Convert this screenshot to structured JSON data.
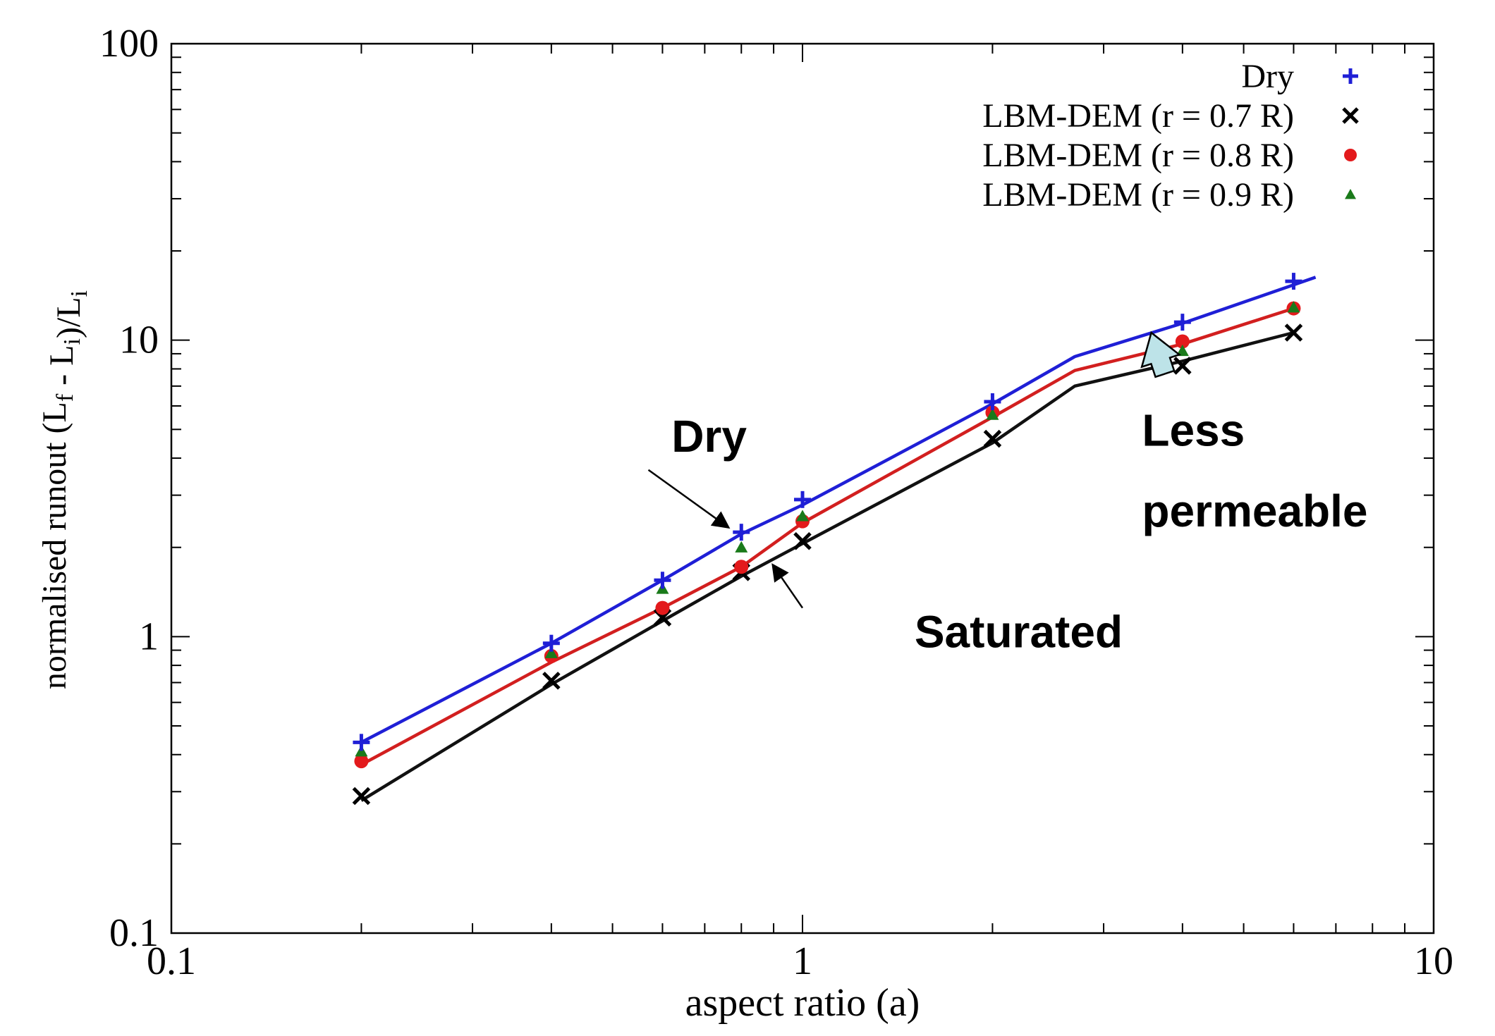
{
  "chart_data": {
    "type": "scatter",
    "title": "",
    "xlabel": "aspect ratio (a)",
    "ylabel": "normalised runout (L_f - L_i)/L_i",
    "xscale": "log",
    "yscale": "log",
    "xlim": [
      0.1,
      10
    ],
    "ylim": [
      0.1,
      100
    ],
    "x_ticks": [
      "0.1",
      "1",
      "10"
    ],
    "y_ticks": [
      "0.1",
      "1",
      "10",
      "100"
    ],
    "legend_position": "top-right",
    "series": [
      {
        "name": "Dry",
        "marker": "plus",
        "color": "#1f1fd6",
        "points": [
          [
            0.2,
            0.44
          ],
          [
            0.4,
            0.95
          ],
          [
            0.6,
            1.55
          ],
          [
            0.8,
            2.25
          ],
          [
            1.0,
            2.9
          ],
          [
            2.0,
            6.2
          ],
          [
            4.0,
            11.5
          ],
          [
            6.0,
            15.8
          ]
        ]
      },
      {
        "name": "LBM-DEM (r = 0.7 R)",
        "marker": "x",
        "color": "#000000",
        "points": [
          [
            0.2,
            0.29
          ],
          [
            0.4,
            0.71
          ],
          [
            0.6,
            1.16
          ],
          [
            0.8,
            1.65
          ],
          [
            1.0,
            2.1
          ],
          [
            2.0,
            4.65
          ],
          [
            4.0,
            8.2
          ],
          [
            6.0,
            10.6
          ]
        ]
      },
      {
        "name": "LBM-DEM (r = 0.8 R)",
        "marker": "circle",
        "color": "#e31a1c",
        "points": [
          [
            0.2,
            0.38
          ],
          [
            0.4,
            0.86
          ],
          [
            0.6,
            1.25
          ],
          [
            0.8,
            1.72
          ],
          [
            1.0,
            2.45
          ],
          [
            2.0,
            5.7
          ],
          [
            4.0,
            9.9
          ],
          [
            6.0,
            12.8
          ]
        ]
      },
      {
        "name": "LBM-DEM (r = 0.9 R)",
        "marker": "triangle",
        "color": "#1a7a1a",
        "points": [
          [
            0.2,
            0.41
          ],
          [
            0.4,
            0.88
          ],
          [
            0.6,
            1.45
          ],
          [
            0.8,
            2.0
          ],
          [
            1.0,
            2.55
          ],
          [
            2.0,
            5.6
          ],
          [
            4.0,
            9.2
          ],
          [
            6.0,
            12.9
          ]
        ]
      }
    ],
    "trend_lines": [
      {
        "series": "Dry",
        "color": "#1f1fd6",
        "points": [
          [
            0.2,
            0.44
          ],
          [
            0.4,
            0.95
          ],
          [
            0.6,
            1.55
          ],
          [
            0.8,
            2.22
          ],
          [
            1.0,
            2.78
          ],
          [
            2.0,
            6.1
          ],
          [
            2.7,
            8.8
          ],
          [
            4.0,
            11.4
          ],
          [
            6.5,
            16.3
          ]
        ]
      },
      {
        "series": "LBM-DEM (r = 0.8 R)",
        "color": "#d21f1f",
        "points": [
          [
            0.2,
            0.37
          ],
          [
            0.4,
            0.82
          ],
          [
            0.6,
            1.25
          ],
          [
            0.8,
            1.72
          ],
          [
            1.0,
            2.42
          ],
          [
            2.0,
            5.5
          ],
          [
            2.7,
            7.9
          ],
          [
            4.0,
            9.7
          ],
          [
            6.0,
            12.8
          ]
        ]
      },
      {
        "series": "LBM-DEM (r = 0.7 R)",
        "color": "#111111",
        "points": [
          [
            0.2,
            0.28
          ],
          [
            0.4,
            0.69
          ],
          [
            0.6,
            1.13
          ],
          [
            0.8,
            1.6
          ],
          [
            1.0,
            2.06
          ],
          [
            2.0,
            4.5
          ],
          [
            2.7,
            7.0
          ],
          [
            4.0,
            8.5
          ],
          [
            6.0,
            10.6
          ]
        ]
      }
    ],
    "annotations": [
      {
        "text": "Dry",
        "label_at": [
          0.62,
          4.2
        ],
        "arrow_from": [
          0.57,
          3.65
        ],
        "arrow_to": [
          0.76,
          2.35
        ]
      },
      {
        "text": "Saturated",
        "label_at": [
          2.2,
          0.92
        ],
        "arrow_from": [
          1.0,
          1.25
        ],
        "arrow_to": [
          0.9,
          1.73
        ]
      },
      {
        "text": "Less",
        "label_at": [
          3.45,
          4.4
        ],
        "line2": "permeable",
        "line2_at": [
          3.45,
          2.35
        ],
        "arrow_tail": [
          3.75,
          7.7
        ],
        "arrow_head": [
          3.57,
          10.6
        ],
        "arrow_fill": "#bde3e8"
      }
    ]
  }
}
